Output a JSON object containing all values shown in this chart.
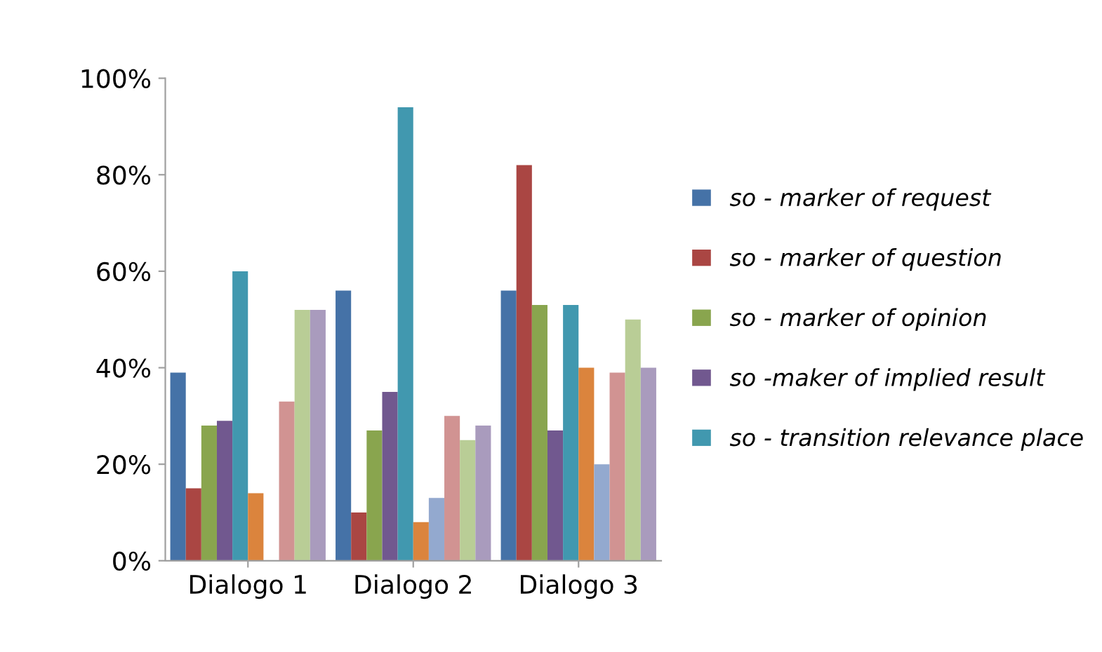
{
  "chart_data": {
    "type": "bar",
    "categories": [
      "Dialogo 1",
      "Dialogo 2",
      "Dialogo 3"
    ],
    "series": [
      {
        "name": "so - marker of request",
        "color": "#4572a7",
        "values": [
          39,
          56,
          56
        ]
      },
      {
        "name": "so - marker of question",
        "color": "#aa4643",
        "values": [
          15,
          10,
          82
        ]
      },
      {
        "name": "so - marker of opinion",
        "color": "#89a54e",
        "values": [
          28,
          27,
          53
        ]
      },
      {
        "name": "so -maker of implied result",
        "color": "#71588f",
        "values": [
          29,
          35,
          27
        ]
      },
      {
        "name": "so - transition relevance place",
        "color": "#4198af",
        "values": [
          60,
          94,
          53
        ]
      },
      {
        "color": "#db843d",
        "values": [
          14,
          8,
          40
        ]
      },
      {
        "color": "#93a9cf",
        "values": [
          0,
          13,
          20
        ]
      },
      {
        "color": "#d19392",
        "values": [
          33,
          30,
          39
        ]
      },
      {
        "color": "#b9cd96",
        "values": [
          52,
          25,
          50
        ]
      },
      {
        "color": "#a99bbd",
        "values": [
          52,
          28,
          40
        ]
      }
    ],
    "ylim": [
      0,
      100
    ],
    "yticks": [
      {
        "value": 0,
        "label": "0%"
      },
      {
        "value": 20,
        "label": "20%"
      },
      {
        "value": 40,
        "label": "40%"
      },
      {
        "value": 60,
        "label": "60%"
      },
      {
        "value": 80,
        "label": "80%"
      },
      {
        "value": 100,
        "label": "100%"
      }
    ],
    "grid": false,
    "legend": "right"
  }
}
